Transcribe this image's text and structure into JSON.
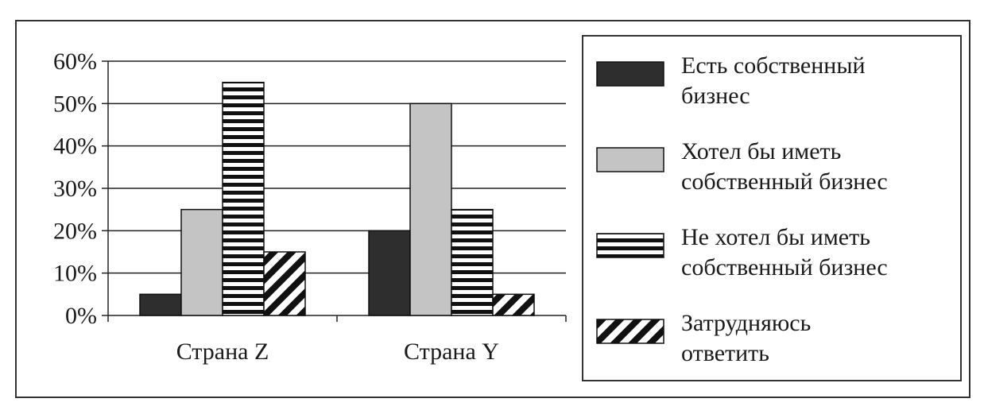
{
  "chart_data": {
    "type": "bar",
    "categories": [
      "Страна Z",
      "Страна Y"
    ],
    "y_ticks": [
      "0%",
      "10%",
      "20%",
      "30%",
      "40%",
      "50%",
      "60%"
    ],
    "ylim": [
      0,
      60
    ],
    "unit": "%",
    "grid": true,
    "legend_position": "right",
    "series": [
      {
        "name": "Есть собственный бизнес",
        "legend_lines": [
          "Есть собственный",
          "бизнес"
        ],
        "values": [
          5,
          20
        ],
        "pattern": "solid-dark",
        "color": "#2e2e2e"
      },
      {
        "name": "Хотел бы иметь собственный бизнес",
        "legend_lines": [
          "Хотел бы иметь",
          "собственный бизнес"
        ],
        "values": [
          25,
          50
        ],
        "pattern": "solid-light",
        "color": "#c4c4c4"
      },
      {
        "name": "Не хотел бы иметь собственный бизнес",
        "legend_lines": [
          "Не хотел бы иметь",
          "собственный бизнес"
        ],
        "values": [
          55,
          25
        ],
        "pattern": "horizontal-stripes",
        "color": "#111111"
      },
      {
        "name": "Затрудняюсь ответить",
        "legend_lines": [
          "Затрудняюсь",
          "ответить"
        ],
        "values": [
          15,
          5
        ],
        "pattern": "diagonal-stripes",
        "color": "#111111"
      }
    ]
  }
}
